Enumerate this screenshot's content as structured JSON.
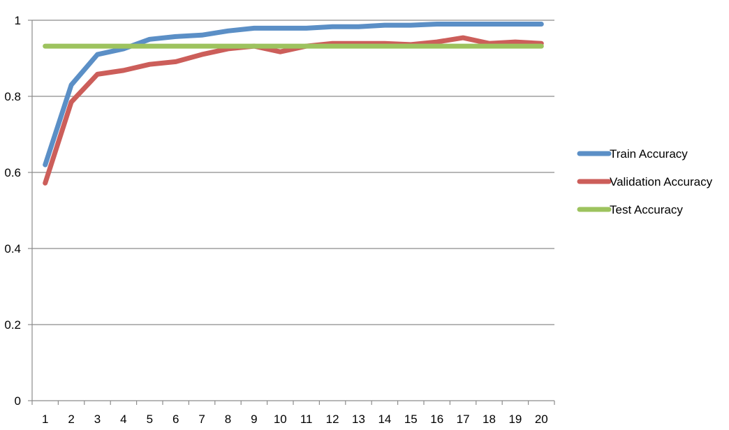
{
  "chart_data": {
    "type": "line",
    "title": "",
    "xlabel": "",
    "ylabel": "",
    "x": [
      1,
      2,
      3,
      4,
      5,
      6,
      7,
      8,
      9,
      10,
      11,
      12,
      13,
      14,
      15,
      16,
      17,
      18,
      19,
      20
    ],
    "ylim": [
      0,
      1
    ],
    "yticks": [
      {
        "value": 0,
        "label": "0"
      },
      {
        "value": 0.2,
        "label": "0.2"
      },
      {
        "value": 0.4,
        "label": "0.4"
      },
      {
        "value": 0.6,
        "label": "0.6"
      },
      {
        "value": 0.8,
        "label": "0.8"
      },
      {
        "value": 1,
        "label": "1"
      }
    ],
    "xticks": [
      "1",
      "2",
      "3",
      "4",
      "5",
      "6",
      "7",
      "8",
      "9",
      "10",
      "11",
      "12",
      "13",
      "14",
      "15",
      "16",
      "17",
      "18",
      "19",
      "20"
    ],
    "grid": "horizontal",
    "legend_position": "right",
    "series": [
      {
        "name": "Train Accuracy",
        "color": "#5b8fc6",
        "values": [
          0.62,
          0.83,
          0.91,
          0.925,
          0.95,
          0.957,
          0.961,
          0.972,
          0.979,
          0.979,
          0.979,
          0.983,
          0.983,
          0.987,
          0.987,
          0.99,
          0.99,
          0.99,
          0.99,
          0.99
        ]
      },
      {
        "name": "Validation Accuracy",
        "color": "#cc5e5a",
        "values": [
          0.572,
          0.785,
          0.858,
          0.868,
          0.884,
          0.891,
          0.91,
          0.925,
          0.932,
          0.917,
          0.932,
          0.939,
          0.939,
          0.939,
          0.936,
          0.943,
          0.954,
          0.939,
          0.943,
          0.939
        ]
      },
      {
        "name": "Test Accuracy",
        "color": "#9dc35e",
        "values": [
          0.932,
          0.932,
          0.932,
          0.932,
          0.932,
          0.932,
          0.932,
          0.932,
          0.932,
          0.932,
          0.932,
          0.932,
          0.932,
          0.932,
          0.932,
          0.932,
          0.932,
          0.932,
          0.932,
          0.932
        ]
      }
    ]
  }
}
